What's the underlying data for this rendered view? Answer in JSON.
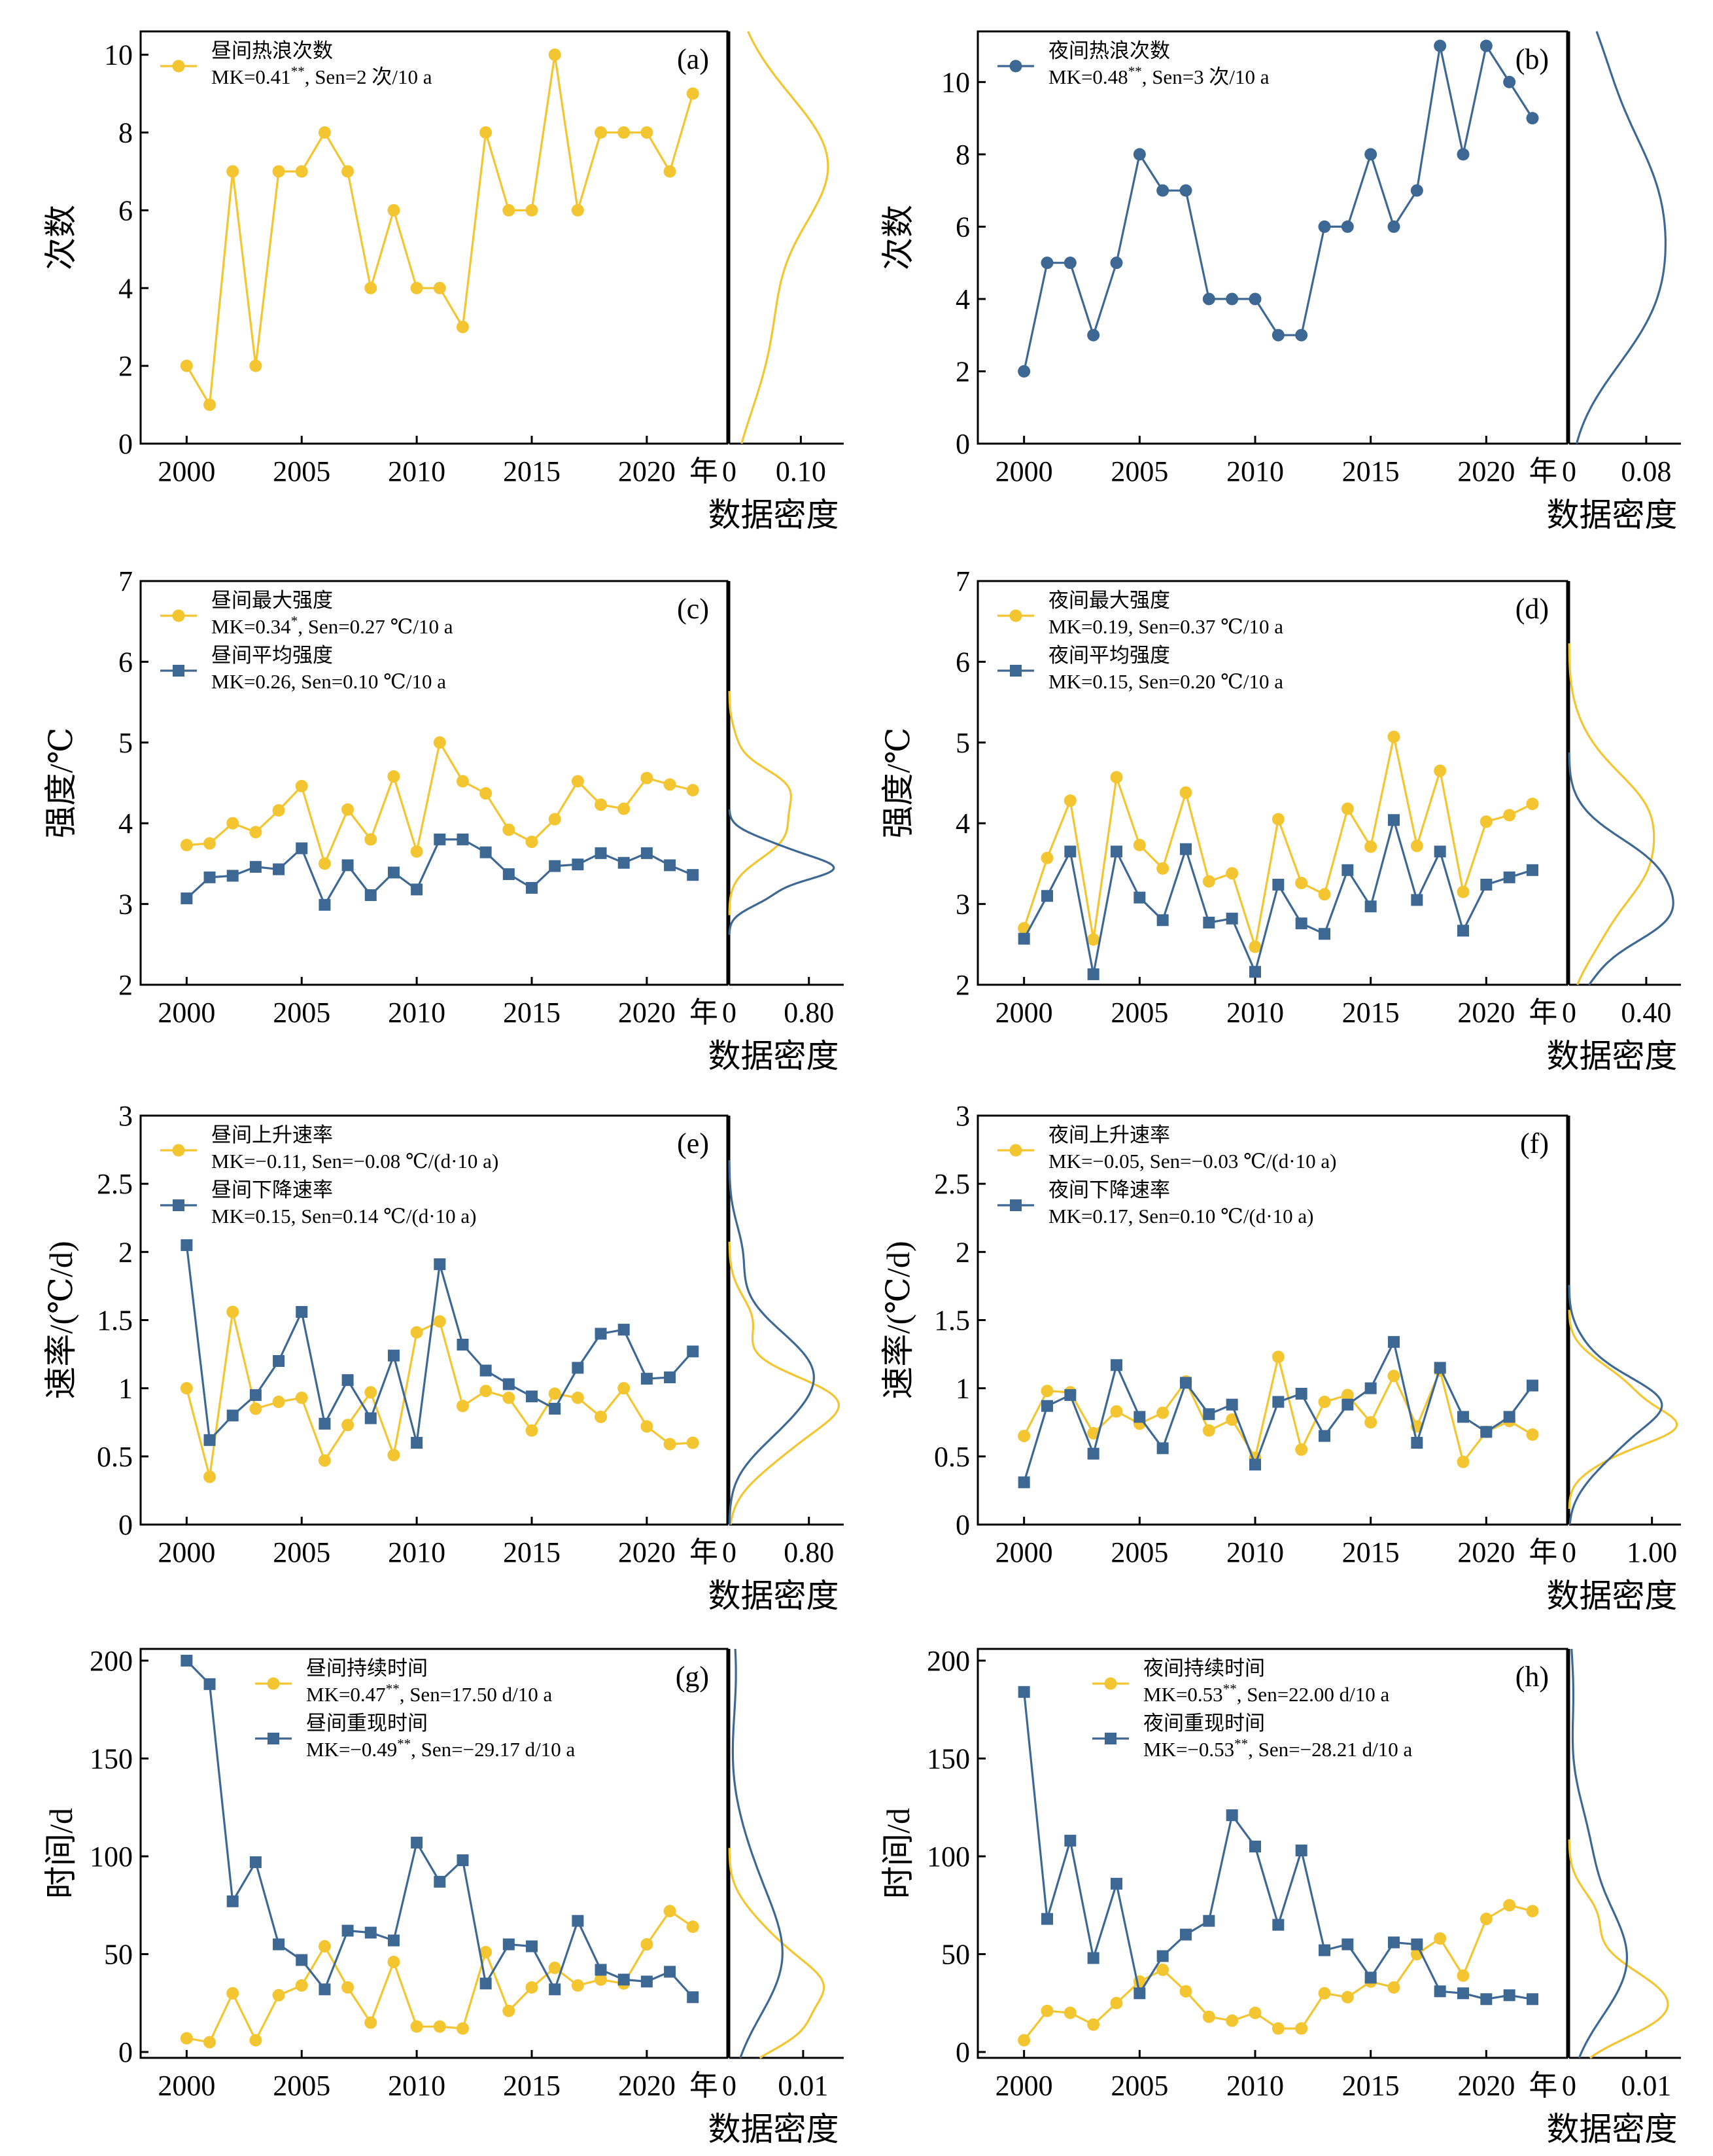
{
  "colors": {
    "yellow": "#F2C531",
    "blue": "#3E6894"
  },
  "density_label": "数据密度",
  "year_unit": "年",
  "chart_data": [
    {
      "id": "a",
      "type": "line",
      "panel_label": "(a)",
      "ylabel": "次数",
      "x": [
        2000,
        2001,
        2002,
        2003,
        2004,
        2005,
        2006,
        2007,
        2008,
        2009,
        2010,
        2011,
        2012,
        2013,
        2014,
        2015,
        2016,
        2017,
        2018,
        2019,
        2020,
        2021,
        2022
      ],
      "xlim": [
        1998,
        2023.5
      ],
      "xticks": [
        2000,
        2005,
        2010,
        2015,
        2020
      ],
      "ylim": [
        0,
        10.6
      ],
      "yticks": [
        0,
        2,
        4,
        6,
        8,
        10
      ],
      "density_xlim": [
        0,
        0.16
      ],
      "density_ticks": [
        "0",
        "0.10"
      ],
      "density_tick_values": [
        0,
        0.1
      ],
      "series": [
        {
          "name": "昼间热浪次数",
          "stat": "MK=0.41",
          "sup": "**",
          "sen": ", Sen=2 次/10 a",
          "color": "yellow",
          "marker": "circle",
          "density_max": 0.138,
          "values": [
            2,
            1,
            7,
            2,
            7,
            7,
            8,
            7,
            4,
            6,
            4,
            4,
            3,
            8,
            6,
            6,
            10,
            6,
            8,
            8,
            8,
            7,
            9
          ]
        }
      ]
    },
    {
      "id": "b",
      "type": "line",
      "panel_label": "(b)",
      "ylabel": "次数",
      "x": [
        2000,
        2001,
        2002,
        2003,
        2004,
        2005,
        2006,
        2007,
        2008,
        2009,
        2010,
        2011,
        2012,
        2013,
        2014,
        2015,
        2016,
        2017,
        2018,
        2019,
        2020,
        2021,
        2022
      ],
      "xlim": [
        1998,
        2023.5
      ],
      "xticks": [
        2000,
        2005,
        2010,
        2015,
        2020
      ],
      "ylim": [
        0,
        11.4
      ],
      "yticks": [
        0,
        2,
        4,
        6,
        8,
        10
      ],
      "density_xlim": [
        0,
        0.116
      ],
      "density_ticks": [
        "0",
        "0.08"
      ],
      "density_tick_values": [
        0,
        0.08
      ],
      "series": [
        {
          "name": "夜间热浪次数",
          "stat": "MK=0.48",
          "sup": "**",
          "sen": ", Sen=3 次/10 a",
          "color": "blue",
          "marker": "circle",
          "density_max": 0.1,
          "values": [
            2,
            5,
            5,
            3,
            5,
            8,
            7,
            7,
            4,
            4,
            4,
            3,
            3,
            6,
            6,
            8,
            6,
            7,
            11,
            8,
            11,
            10,
            9
          ]
        }
      ]
    },
    {
      "id": "c",
      "type": "line",
      "panel_label": "(c)",
      "ylabel": "强度/℃",
      "x": [
        2000,
        2001,
        2002,
        2003,
        2004,
        2005,
        2006,
        2007,
        2008,
        2009,
        2010,
        2011,
        2012,
        2013,
        2014,
        2015,
        2016,
        2017,
        2018,
        2019,
        2020,
        2021,
        2022
      ],
      "xlim": [
        1998,
        2023.5
      ],
      "xticks": [
        2000,
        2005,
        2010,
        2015,
        2020
      ],
      "ylim": [
        2,
        7
      ],
      "yticks": [
        2,
        3,
        4,
        5,
        6,
        7
      ],
      "density_xlim": [
        0,
        1.15
      ],
      "density_ticks": [
        "0",
        "0.80"
      ],
      "density_tick_values": [
        0,
        0.8
      ],
      "series": [
        {
          "name": "昼间最大强度",
          "stat": "MK=0.34",
          "sup": "*",
          "sen": ", Sen=0.27 ℃/10 a",
          "color": "yellow",
          "marker": "circle",
          "density_max": 0.62,
          "values": [
            3.73,
            3.75,
            4.0,
            3.89,
            4.16,
            4.46,
            3.5,
            4.17,
            3.8,
            4.58,
            3.65,
            5.0,
            4.52,
            4.37,
            3.92,
            3.77,
            4.05,
            4.52,
            4.23,
            4.18,
            4.56,
            4.48,
            4.41
          ]
        },
        {
          "name": "昼间平均强度",
          "stat": "MK=0.26",
          "sup": "",
          "sen": ", Sen=0.10 ℃/10 a",
          "color": "blue",
          "marker": "square",
          "density_max": 1.05,
          "values": [
            3.07,
            3.33,
            3.35,
            3.46,
            3.43,
            3.69,
            2.99,
            3.48,
            3.11,
            3.39,
            3.18,
            3.8,
            3.8,
            3.64,
            3.37,
            3.2,
            3.47,
            3.49,
            3.63,
            3.51,
            3.63,
            3.48,
            3.36
          ]
        }
      ]
    },
    {
      "id": "d",
      "type": "line",
      "panel_label": "(d)",
      "ylabel": "强度/℃",
      "x": [
        2000,
        2001,
        2002,
        2003,
        2004,
        2005,
        2006,
        2007,
        2008,
        2009,
        2010,
        2011,
        2012,
        2013,
        2014,
        2015,
        2016,
        2017,
        2018,
        2019,
        2020,
        2021,
        2022
      ],
      "xlim": [
        1998,
        2023.5
      ],
      "xticks": [
        2000,
        2005,
        2010,
        2015,
        2020
      ],
      "ylim": [
        2,
        7
      ],
      "yticks": [
        2,
        3,
        4,
        5,
        6,
        7
      ],
      "density_xlim": [
        0,
        0.58
      ],
      "density_ticks": [
        "0",
        "0.40"
      ],
      "density_tick_values": [
        0,
        0.4
      ],
      "series": [
        {
          "name": "夜间最大强度",
          "stat": "MK=0.19",
          "sup": "",
          "sen": ", Sen=0.37 ℃/10 a",
          "color": "yellow",
          "marker": "circle",
          "density_max": 0.44,
          "values": [
            2.7,
            3.57,
            4.28,
            2.56,
            4.57,
            3.73,
            3.44,
            4.38,
            3.28,
            3.38,
            2.47,
            4.05,
            3.26,
            3.12,
            4.18,
            3.71,
            5.07,
            3.72,
            4.65,
            3.15,
            4.02,
            4.1,
            4.24
          ]
        },
        {
          "name": "夜间平均强度",
          "stat": "MK=0.15",
          "sup": "",
          "sen": ", Sen=0.20 ℃/10 a",
          "color": "blue",
          "marker": "square",
          "density_max": 0.54,
          "values": [
            2.57,
            3.1,
            3.65,
            2.13,
            3.65,
            3.08,
            2.8,
            3.68,
            2.77,
            2.82,
            2.16,
            3.24,
            2.76,
            2.63,
            3.42,
            2.97,
            4.04,
            3.05,
            3.65,
            2.67,
            3.24,
            3.33,
            3.42
          ]
        }
      ]
    },
    {
      "id": "e",
      "type": "line",
      "panel_label": "(e)",
      "ylabel": "速率/(℃/d)",
      "x": [
        2000,
        2001,
        2002,
        2003,
        2004,
        2005,
        2006,
        2007,
        2008,
        2009,
        2010,
        2011,
        2012,
        2013,
        2014,
        2015,
        2016,
        2017,
        2018,
        2019,
        2020,
        2021,
        2022
      ],
      "xlim": [
        1998,
        2023.5
      ],
      "xticks": [
        2000,
        2005,
        2010,
        2015,
        2020
      ],
      "ylim": [
        0,
        3.0
      ],
      "yticks": [
        0,
        0.5,
        1.0,
        1.5,
        2.0,
        2.5,
        3.0
      ],
      "density_xlim": [
        0,
        1.15
      ],
      "density_ticks": [
        "0",
        "0.80"
      ],
      "density_tick_values": [
        0,
        0.8
      ],
      "series": [
        {
          "name": "昼间上升速率",
          "stat": "MK=−0.11",
          "sup": "",
          "sen": ", Sen=−0.08 ℃/(d·10 a)",
          "color": "yellow",
          "marker": "circle",
          "density_max": 1.1,
          "values": [
            1.0,
            0.35,
            1.56,
            0.85,
            0.9,
            0.93,
            0.47,
            0.73,
            0.97,
            0.51,
            1.41,
            1.49,
            0.87,
            0.98,
            0.93,
            0.69,
            0.96,
            0.93,
            0.79,
            1.0,
            0.72,
            0.59,
            0.6
          ]
        },
        {
          "name": "昼间下降速率",
          "stat": "MK=0.15",
          "sup": "",
          "sen": ", Sen=0.14 ℃/(d·10 a)",
          "color": "blue",
          "marker": "square",
          "density_max": 0.85,
          "values": [
            2.05,
            0.62,
            0.8,
            0.95,
            1.2,
            1.56,
            0.74,
            1.06,
            0.78,
            1.24,
            0.6,
            1.91,
            1.32,
            1.13,
            1.03,
            0.94,
            0.85,
            1.15,
            1.4,
            1.43,
            1.07,
            1.08,
            1.27
          ]
        }
      ]
    },
    {
      "id": "f",
      "type": "line",
      "panel_label": "(f)",
      "ylabel": "速率/(℃/d)",
      "x": [
        2000,
        2001,
        2002,
        2003,
        2004,
        2005,
        2006,
        2007,
        2008,
        2009,
        2010,
        2011,
        2012,
        2013,
        2014,
        2015,
        2016,
        2017,
        2018,
        2019,
        2020,
        2021,
        2022
      ],
      "xlim": [
        1998,
        2023.5
      ],
      "xticks": [
        2000,
        2005,
        2010,
        2015,
        2020
      ],
      "ylim": [
        0,
        3.0
      ],
      "yticks": [
        0,
        0.5,
        1.0,
        1.5,
        2.0,
        2.5,
        3.0
      ],
      "density_xlim": [
        0,
        1.35
      ],
      "density_ticks": [
        "0",
        "1.00"
      ],
      "density_tick_values": [
        0,
        1.0
      ],
      "series": [
        {
          "name": "夜间上升速率",
          "stat": "MK=−0.05",
          "sup": "",
          "sen": ", Sen=−0.03 ℃/(d·10 a)",
          "color": "yellow",
          "marker": "circle",
          "density_max": 1.3,
          "values": [
            0.65,
            0.98,
            0.97,
            0.67,
            0.83,
            0.74,
            0.82,
            1.05,
            0.69,
            0.77,
            0.49,
            1.23,
            0.55,
            0.9,
            0.95,
            0.75,
            1.09,
            0.72,
            1.13,
            0.46,
            0.68,
            0.76,
            0.66
          ]
        },
        {
          "name": "夜间下降速率",
          "stat": "MK=0.17",
          "sup": "",
          "sen": ", Sen=0.10 ℃/(d·10 a)",
          "color": "blue",
          "marker": "square",
          "density_max": 1.12,
          "values": [
            0.31,
            0.87,
            0.95,
            0.52,
            1.17,
            0.79,
            0.56,
            1.04,
            0.81,
            0.88,
            0.44,
            0.9,
            0.96,
            0.65,
            0.88,
            1.0,
            1.34,
            0.6,
            1.15,
            0.79,
            0.68,
            0.79,
            1.02
          ]
        }
      ]
    },
    {
      "id": "g",
      "type": "line",
      "panel_label": "(g)",
      "ylabel": "时间/d",
      "x": [
        2000,
        2001,
        2002,
        2003,
        2004,
        2005,
        2006,
        2007,
        2008,
        2009,
        2010,
        2011,
        2012,
        2013,
        2014,
        2015,
        2016,
        2017,
        2018,
        2019,
        2020,
        2021,
        2022
      ],
      "xlim": [
        1998,
        2023.5
      ],
      "xticks": [
        2000,
        2005,
        2010,
        2015,
        2020
      ],
      "ylim": [
        -3,
        206
      ],
      "yticks": [
        0,
        50,
        100,
        150,
        200
      ],
      "density_xlim": [
        0,
        0.0155
      ],
      "density_ticks": [
        "0",
        "0.01"
      ],
      "density_tick_values": [
        0,
        0.01
      ],
      "series": [
        {
          "name": "昼间持续时间",
          "stat": "MK=0.47",
          "sup": "**",
          "sen": ", Sen=17.50 d/10 a",
          "color": "yellow",
          "marker": "circle",
          "density_max": 0.0128,
          "values": [
            7,
            5,
            30,
            6,
            29,
            34,
            54,
            33,
            15,
            46,
            13,
            13,
            12,
            51,
            21,
            33,
            43,
            34,
            37,
            35,
            55,
            72,
            64
          ]
        },
        {
          "name": "昼间重现时间",
          "stat": "MK=−0.49",
          "sup": "**",
          "sen": ", Sen=−29.17 d/10 a",
          "color": "blue",
          "marker": "square",
          "density_max": 0.0072,
          "values": [
            200,
            188,
            77,
            97,
            55,
            47,
            32,
            62,
            61,
            57,
            107,
            87,
            98,
            35,
            55,
            54,
            32,
            67,
            42,
            37,
            36,
            41,
            28
          ]
        }
      ]
    },
    {
      "id": "h",
      "type": "line",
      "panel_label": "(h)",
      "ylabel": "时间/d",
      "x": [
        2000,
        2001,
        2002,
        2003,
        2004,
        2005,
        2006,
        2007,
        2008,
        2009,
        2010,
        2011,
        2012,
        2013,
        2014,
        2015,
        2016,
        2017,
        2018,
        2019,
        2020,
        2021,
        2022
      ],
      "xlim": [
        1998,
        2023.5
      ],
      "xticks": [
        2000,
        2005,
        2010,
        2015,
        2020
      ],
      "ylim": [
        -3,
        206
      ],
      "yticks": [
        0,
        50,
        100,
        150,
        200
      ],
      "density_xlim": [
        0,
        0.0145
      ],
      "density_ticks": [
        "0",
        "0.01"
      ],
      "density_tick_values": [
        0,
        0.01
      ],
      "series": [
        {
          "name": "夜间持续时间",
          "stat": "MK=0.53",
          "sup": "**",
          "sen": ", Sen=22.00 d/10 a",
          "color": "yellow",
          "marker": "circle",
          "density_max": 0.0128,
          "values": [
            6,
            21,
            20,
            14,
            25,
            36,
            42,
            31,
            18,
            16,
            20,
            12,
            12,
            30,
            28,
            36,
            33,
            50,
            58,
            39,
            68,
            75,
            72
          ]
        },
        {
          "name": "夜间重现时间",
          "stat": "MK=−0.53",
          "sup": "**",
          "sen": ", Sen=−28.21 d/10 a",
          "color": "blue",
          "marker": "square",
          "density_max": 0.0075,
          "values": [
            184,
            68,
            108,
            48,
            86,
            30,
            49,
            60,
            67,
            121,
            105,
            65,
            103,
            52,
            55,
            38,
            56,
            55,
            31,
            30,
            27,
            29,
            27
          ]
        }
      ]
    }
  ]
}
